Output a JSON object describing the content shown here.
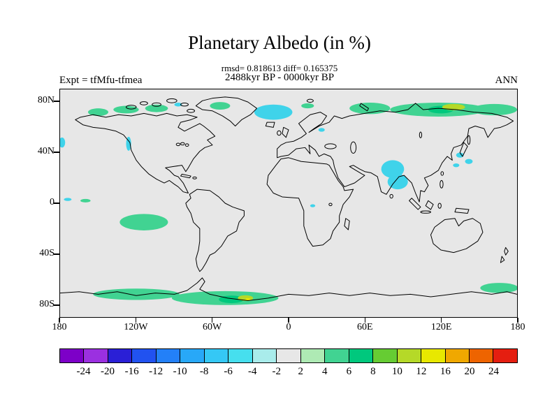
{
  "figure": {
    "title": "Planetary Albedo (in %)",
    "stats_line": "rmsd= 0.818613 diff= 0.165375",
    "period_line": "2488kyr BP - 0000kyr BP",
    "experiment_label": "Expt = tfMfu-tfmea",
    "season_label": "ANN"
  },
  "axes": {
    "lat_ticks": [
      {
        "label": "80N",
        "value": 80
      },
      {
        "label": "40N",
        "value": 40
      },
      {
        "label": "0",
        "value": 0
      },
      {
        "label": "40S",
        "value": -40
      },
      {
        "label": "80S",
        "value": -80
      }
    ],
    "lon_ticks": [
      {
        "label": "180",
        "value": -180
      },
      {
        "label": "120W",
        "value": -120
      },
      {
        "label": "60W",
        "value": -60
      },
      {
        "label": "0",
        "value": 0
      },
      {
        "label": "60E",
        "value": 60
      },
      {
        "label": "120E",
        "value": 120
      },
      {
        "label": "180",
        "value": 180
      }
    ]
  },
  "chart_data": {
    "type": "heatmap",
    "title": "Planetary Albedo (in %)",
    "subtitle": "2488kyr BP - 0000kyr BP",
    "stats": {
      "rmsd": 0.818613,
      "diff": 0.165375
    },
    "experiment": "tfMfu-tfmea",
    "season": "ANN",
    "units": "%",
    "projection": "equirectangular world map, 90N to 90S, 180W to 180E",
    "background_value": "near zero (-2 to 2) over most of the globe, shown light gray",
    "colorbar": {
      "levels": [
        -24,
        -20,
        -16,
        -12,
        -10,
        -8,
        -6,
        -4,
        -2,
        2,
        4,
        6,
        8,
        10,
        12,
        16,
        20,
        24
      ],
      "labels": [
        "-24",
        "-20",
        "-16",
        "-12",
        "-10",
        "-8",
        "-6",
        "-4",
        "-2",
        "2",
        "4",
        "6",
        "8",
        "10",
        "12",
        "16",
        "20",
        "24"
      ],
      "colors": [
        "#7d00c8",
        "#9b30e0",
        "#2a1fd6",
        "#2152f0",
        "#2380f8",
        "#28a8f8",
        "#35c8f5",
        "#46dfee",
        "#a9eceb",
        "#e7e7e7",
        "#aeeab4",
        "#41d392",
        "#00c87d",
        "#66cc33",
        "#b5d928",
        "#e8e800",
        "#f0a800",
        "#ee6400",
        "#e51e10"
      ]
    },
    "anomaly_regions": [
      {
        "region": "Canadian Arctic coast and islands",
        "sign": "positive",
        "approx_value": "2 to 6"
      },
      {
        "region": "North Greenland / Arctic islands",
        "sign": "positive",
        "approx_value": "2 to 4"
      },
      {
        "region": "Greenland Sea / Iceland area",
        "sign": "negative",
        "approx_value": "-6 to -2"
      },
      {
        "region": "Barents Sea and Siberian Arctic coast",
        "sign": "positive",
        "approx_value": "2 to 10, small yellow spots to 16"
      },
      {
        "region": "US Pacific Northwest coast",
        "sign": "negative",
        "approx_value": "-6 to -2"
      },
      {
        "region": "Eastern tropical South Pacific",
        "sign": "positive",
        "approx_value": "2 to 4"
      },
      {
        "region": "Northeast India / Bay of Bengal",
        "sign": "negative",
        "approx_value": "-6 to -2"
      },
      {
        "region": "Yellow Sea / Korea / Japan area",
        "sign": "negative",
        "approx_value": "-6 to -2"
      },
      {
        "region": "Antarctic coastal band",
        "sign": "positive",
        "approx_value": "2 to 12, small yellow spot"
      }
    ]
  }
}
